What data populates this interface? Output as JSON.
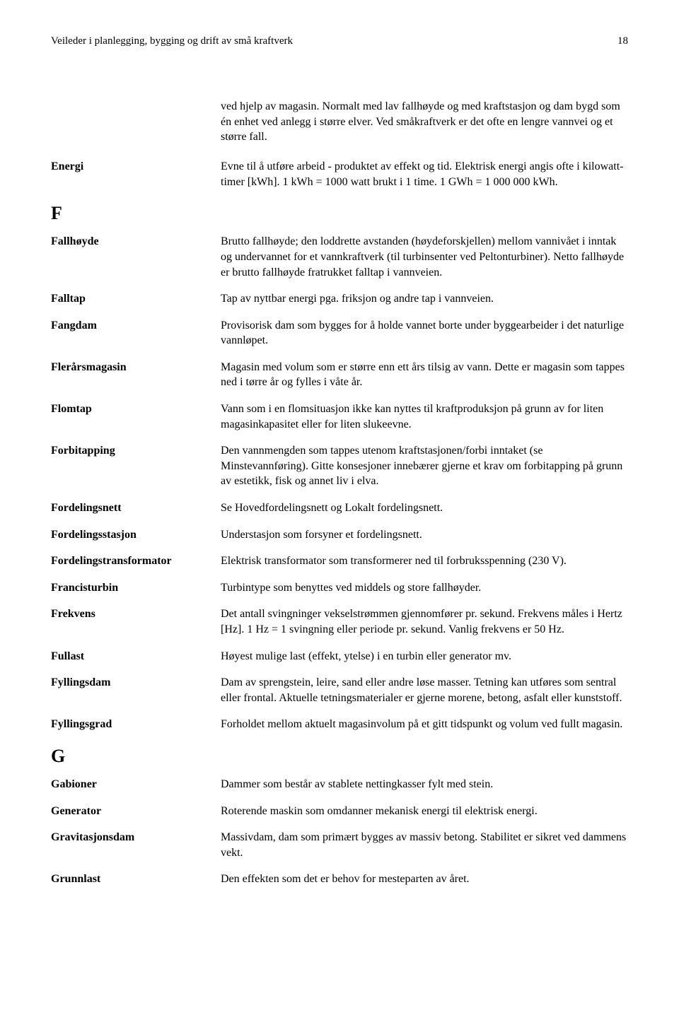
{
  "header": {
    "title": "Veileder i planlegging, bygging og drift av små kraftverk",
    "page_number": "18"
  },
  "intro_text": "ved hjelp av magasin. Normalt med lav fallhøyde og med kraftstasjon og dam bygd som én enhet ved anlegg i større elver. Ved småkraftverk er det ofte en lengre vannvei og et større fall.",
  "entries_top": [
    {
      "term": "Energi",
      "def": "Evne til å utføre arbeid - produktet av effekt og tid. Elektrisk energi angis ofte i kilowatt-timer [kWh]. 1 kWh = 1000 watt brukt i 1 time. 1 GWh = 1 000 000 kWh."
    }
  ],
  "section_F": "F",
  "entries_F": [
    {
      "term": "Fallhøyde",
      "def": "Brutto fallhøyde; den loddrette avstanden (høydeforskjellen) mellom vannivået i inntak og undervannet for et vannkraftverk (til turbinsenter ved Peltonturbiner). Netto fallhøyde er brutto fallhøyde fratrukket falltap i vannveien."
    },
    {
      "term": "Falltap",
      "def": "Tap av nyttbar energi pga. friksjon og andre tap i vannveien."
    },
    {
      "term": "Fangdam",
      "def": "Provisorisk dam som bygges for å holde vannet borte under byggearbeider i det naturlige vannløpet."
    },
    {
      "term": "Flerårsmagasin",
      "def": "Magasin med volum som er større enn ett års tilsig av vann. Dette er magasin som tappes ned i tørre år og fylles i våte år."
    },
    {
      "term": "Flomtap",
      "def": "Vann som i en flomsituasjon ikke kan nyttes til kraftproduksjon på grunn av for liten magasinkapasitet eller for liten slukeevne."
    },
    {
      "term": "Forbitapping",
      "def": "Den vannmengden som tappes utenom kraftstasjonen/forbi inntaket (se Minstevannføring). Gitte konsesjoner innebærer gjerne et krav om forbitapping på grunn av estetikk, fisk og annet liv i elva."
    },
    {
      "term": "Fordelingsnett",
      "def": "Se Hovedfordelingsnett og Lokalt fordelingsnett."
    },
    {
      "term": "Fordelingsstasjon",
      "def": "Understasjon som forsyner et fordelingsnett."
    },
    {
      "term": "Fordelingstransformator",
      "def": "Elektrisk transformator som transformerer ned til forbruksspenning (230 V)."
    },
    {
      "term": "Francisturbin",
      "def": "Turbintype som benyttes ved middels og store fallhøyder."
    },
    {
      "term": "Frekvens",
      "def": "Det antall svingninger vekselstrømmen gjennomfører pr. sekund. Frekvens måles i Hertz [Hz]. 1 Hz = 1 svingning eller periode pr. sekund. Vanlig frekvens er 50 Hz."
    },
    {
      "term": "Fullast",
      "def": "Høyest mulige last (effekt, ytelse) i en turbin eller generator mv."
    },
    {
      "term": "Fyllingsdam",
      "def": "Dam av sprengstein, leire, sand eller andre løse masser. Tetning kan utføres som sentral eller frontal. Aktuelle tetningsmaterialer er gjerne morene, betong, asfalt eller kunststoff."
    },
    {
      "term": "Fyllingsgrad",
      "def": "Forholdet mellom aktuelt magasinvolum på et gitt tidspunkt og volum ved fullt magasin."
    }
  ],
  "section_G": "G",
  "entries_G": [
    {
      "term": "Gabioner",
      "def": "Dammer som består av stablete nettingkasser fylt med stein."
    },
    {
      "term": "Generator",
      "def": "Roterende maskin som omdanner mekanisk energi til elektrisk energi."
    },
    {
      "term": "Gravitasjonsdam",
      "def": "Massivdam, dam som primært bygges av massiv betong. Stabilitet er sikret ved dammens vekt."
    },
    {
      "term": "Grunnlast",
      "def": "Den effekten som det er behov for mesteparten av året."
    }
  ]
}
